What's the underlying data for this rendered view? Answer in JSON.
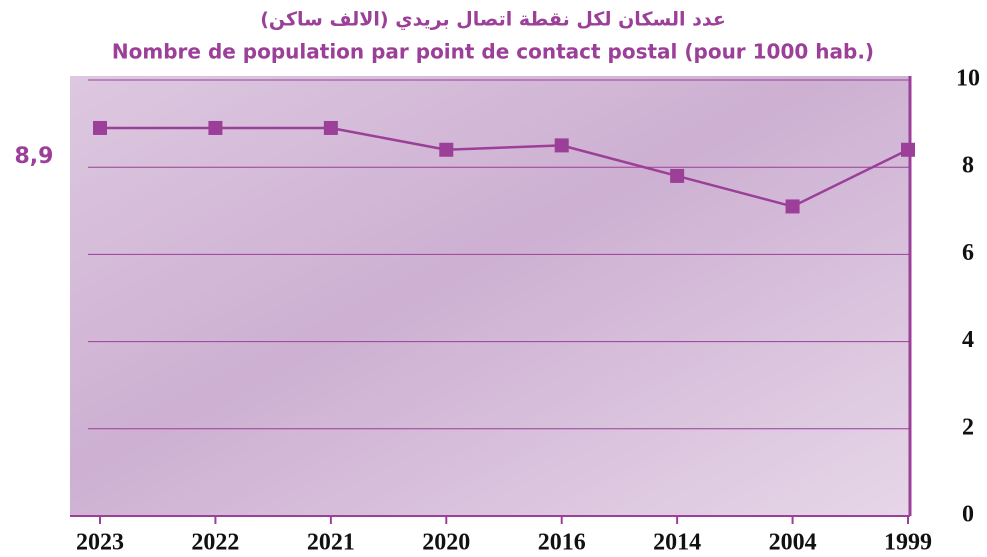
{
  "chart_data": {
    "type": "line",
    "title": "عدد السكان لكل نقطة اتصال بريدي (الالف ساكن)",
    "subtitle": "Nombre de population par point de contact postal (pour 1000 hab.)",
    "categories": [
      "2023",
      "2022",
      "2021",
      "2020",
      "2016",
      "2014",
      "2004",
      "1999"
    ],
    "series": [
      {
        "name": "Nombre de population par point de contact postal",
        "color": "#9b3f98",
        "values": [
          8.9,
          8.9,
          8.9,
          8.4,
          8.5,
          7.8,
          7.1,
          8.4
        ],
        "value_labels": [
          "8,9",
          null,
          null,
          null,
          null,
          null,
          null,
          null
        ]
      }
    ],
    "ylim": [
      0,
      10
    ],
    "yticks": [
      0,
      2,
      4,
      6,
      8,
      10
    ],
    "grid": true,
    "y_axis_side": "right"
  }
}
